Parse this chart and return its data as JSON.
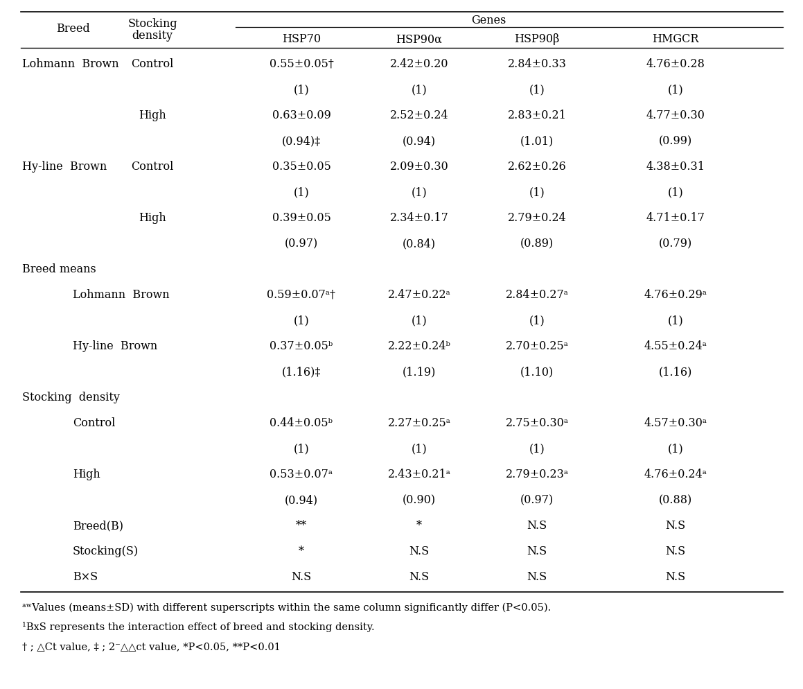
{
  "col_headers_row1": [
    "Breed",
    "Stocking\ndensity",
    "Genes"
  ],
  "col_headers_row2": [
    "",
    "",
    "HSP70",
    "HSP90α",
    "HSP90β",
    "HMGCR"
  ],
  "rows": [
    {
      "c0": "Lohmann  Brown",
      "c1": "Control",
      "c2": "0.55±0.05†",
      "c3": "2.42±0.20",
      "c4": "2.84±0.33",
      "c5": "4.76±0.28",
      "indent": false,
      "section": false
    },
    {
      "c0": "",
      "c1": "",
      "c2": "(1)",
      "c3": "(1)",
      "c4": "(1)",
      "c5": "(1)",
      "indent": false,
      "section": false
    },
    {
      "c0": "",
      "c1": "High",
      "c2": "0.63±0.09",
      "c3": "2.52±0.24",
      "c4": "2.83±0.21",
      "c5": "4.77±0.30",
      "indent": false,
      "section": false
    },
    {
      "c0": "",
      "c1": "",
      "c2": "(0.94)‡",
      "c3": "(0.94)",
      "c4": "(1.01)",
      "c5": "(0.99)",
      "indent": false,
      "section": false
    },
    {
      "c0": "Hy-line  Brown",
      "c1": "Control",
      "c2": "0.35±0.05",
      "c3": "2.09±0.30",
      "c4": "2.62±0.26",
      "c5": "4.38±0.31",
      "indent": false,
      "section": false
    },
    {
      "c0": "",
      "c1": "",
      "c2": "(1)",
      "c3": "(1)",
      "c4": "(1)",
      "c5": "(1)",
      "indent": false,
      "section": false
    },
    {
      "c0": "",
      "c1": "High",
      "c2": "0.39±0.05",
      "c3": "2.34±0.17",
      "c4": "2.79±0.24",
      "c5": "4.71±0.17",
      "indent": false,
      "section": false
    },
    {
      "c0": "",
      "c1": "",
      "c2": "(0.97)",
      "c3": "(0.84)",
      "c4": "(0.89)",
      "c5": "(0.79)",
      "indent": false,
      "section": false
    },
    {
      "c0": "Breed means",
      "c1": "",
      "c2": "",
      "c3": "",
      "c4": "",
      "c5": "",
      "indent": false,
      "section": true
    },
    {
      "c0": "Lohmann  Brown",
      "c1": "",
      "c2": "0.59±0.07ᵃ†",
      "c3": "2.47±0.22ᵃ",
      "c4": "2.84±0.27ᵃ",
      "c5": "4.76±0.29ᵃ",
      "indent": true,
      "section": false
    },
    {
      "c0": "",
      "c1": "",
      "c2": "(1)",
      "c3": "(1)",
      "c4": "(1)",
      "c5": "(1)",
      "indent": false,
      "section": false
    },
    {
      "c0": "Hy-line  Brown",
      "c1": "",
      "c2": "0.37±0.05ᵇ",
      "c3": "2.22±0.24ᵇ",
      "c4": "2.70±0.25ᵃ",
      "c5": "4.55±0.24ᵃ",
      "indent": true,
      "section": false
    },
    {
      "c0": "",
      "c1": "",
      "c2": "(1.16)‡",
      "c3": "(1.19)",
      "c4": "(1.10)",
      "c5": "(1.16)",
      "indent": false,
      "section": false
    },
    {
      "c0": "Stocking  density",
      "c1": "",
      "c2": "",
      "c3": "",
      "c4": "",
      "c5": "",
      "indent": false,
      "section": true
    },
    {
      "c0": "Control",
      "c1": "",
      "c2": "0.44±0.05ᵇ",
      "c3": "2.27±0.25ᵃ",
      "c4": "2.75±0.30ᵃ",
      "c5": "4.57±0.30ᵃ",
      "indent": true,
      "section": false
    },
    {
      "c0": "",
      "c1": "",
      "c2": "(1)",
      "c3": "(1)",
      "c4": "(1)",
      "c5": "(1)",
      "indent": false,
      "section": false
    },
    {
      "c0": "High",
      "c1": "",
      "c2": "0.53±0.07ᵃ",
      "c3": "2.43±0.21ᵃ",
      "c4": "2.79±0.23ᵃ",
      "c5": "4.76±0.24ᵃ",
      "indent": true,
      "section": false
    },
    {
      "c0": "",
      "c1": "",
      "c2": "(0.94)",
      "c3": "(0.90)",
      "c4": "(0.97)",
      "c5": "(0.88)",
      "indent": false,
      "section": false
    },
    {
      "c0": "Breed(B)",
      "c1": "",
      "c2": "**",
      "c3": "*",
      "c4": "N.S",
      "c5": "N.S",
      "indent": true,
      "section": false
    },
    {
      "c0": "Stocking(S)",
      "c1": "",
      "c2": "*",
      "c3": "N.S",
      "c4": "N.S",
      "c5": "N.S",
      "indent": true,
      "section": false
    },
    {
      "c0": "B×S",
      "c1": "",
      "c2": "N.S",
      "c3": "N.S",
      "c4": "N.S",
      "c5": "N.S",
      "indent": true,
      "section": false
    }
  ],
  "footnote1": "ᵃʷValues (means±SD) with different superscripts within the same column significantly differ (P<0.05).",
  "footnote2": "¹BxS represents the interaction effect of breed and stocking density.",
  "footnote3": "† ; △Ct value, ‡ ; 2⁻△△ct value, *P<0.05, **P<0.01",
  "bg_color": "#ffffff",
  "text_color": "#000000"
}
